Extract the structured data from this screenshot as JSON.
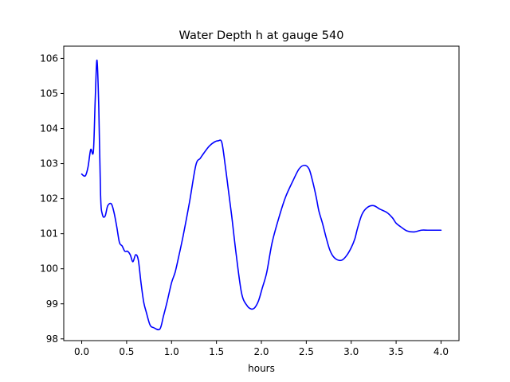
{
  "chart_data": {
    "type": "line",
    "title": "Water Depth h at gauge 540",
    "xlabel": "hours",
    "ylabel": "",
    "xlim": [
      -0.2,
      4.2
    ],
    "ylim": [
      97.95,
      106.35
    ],
    "xticks": [
      0.0,
      0.5,
      1.0,
      1.5,
      2.0,
      2.5,
      3.0,
      3.5,
      4.0
    ],
    "xtick_labels": [
      "0.0",
      "0.5",
      "1.0",
      "1.5",
      "2.0",
      "2.5",
      "3.0",
      "3.5",
      "4.0"
    ],
    "yticks": [
      98,
      99,
      100,
      101,
      102,
      103,
      104,
      105,
      106
    ],
    "ytick_labels": [
      "98",
      "99",
      "100",
      "101",
      "102",
      "103",
      "104",
      "105",
      "106"
    ],
    "grid": false,
    "series": [
      {
        "color": "#0000ff",
        "x": [
          0.0,
          0.04,
          0.07,
          0.1,
          0.13,
          0.15,
          0.17,
          0.19,
          0.21,
          0.23,
          0.26,
          0.29,
          0.33,
          0.36,
          0.39,
          0.42,
          0.45,
          0.48,
          0.51,
          0.54,
          0.57,
          0.6,
          0.63,
          0.66,
          0.69,
          0.72,
          0.76,
          0.8,
          0.87,
          0.91,
          0.95,
          1.0,
          1.04,
          1.08,
          1.13,
          1.2,
          1.27,
          1.32,
          1.36,
          1.42,
          1.48,
          1.52,
          1.56,
          1.6,
          1.63,
          1.67,
          1.72,
          1.78,
          1.84,
          1.89,
          1.93,
          1.97,
          2.01,
          2.06,
          2.12,
          2.2,
          2.27,
          2.35,
          2.42,
          2.48,
          2.53,
          2.57,
          2.61,
          2.64,
          2.68,
          2.72,
          2.76,
          2.8,
          2.85,
          2.9,
          2.95,
          3.0,
          3.04,
          3.07,
          3.12,
          3.18,
          3.25,
          3.32,
          3.4,
          3.46,
          3.5,
          3.55,
          3.62,
          3.7,
          3.78,
          3.85,
          3.92,
          3.96,
          4.0
        ],
        "y": [
          102.7,
          102.65,
          102.9,
          103.4,
          103.35,
          104.8,
          105.95,
          104.6,
          102.1,
          101.55,
          101.5,
          101.8,
          101.85,
          101.6,
          101.2,
          100.75,
          100.65,
          100.5,
          100.5,
          100.4,
          100.2,
          100.4,
          100.25,
          99.6,
          99.05,
          98.75,
          98.4,
          98.32,
          98.28,
          98.65,
          99.05,
          99.6,
          99.9,
          100.35,
          100.95,
          101.9,
          102.95,
          103.15,
          103.3,
          103.5,
          103.62,
          103.65,
          103.6,
          102.9,
          102.3,
          101.5,
          100.4,
          99.3,
          98.95,
          98.85,
          98.9,
          99.1,
          99.45,
          99.9,
          100.75,
          101.5,
          102.05,
          102.5,
          102.85,
          102.95,
          102.85,
          102.5,
          102.05,
          101.65,
          101.3,
          100.9,
          100.55,
          100.35,
          100.25,
          100.25,
          100.38,
          100.6,
          100.85,
          101.15,
          101.55,
          101.75,
          101.8,
          101.7,
          101.6,
          101.45,
          101.3,
          101.2,
          101.08,
          101.05,
          101.1,
          101.1,
          101.1,
          101.1,
          101.1
        ]
      }
    ]
  }
}
